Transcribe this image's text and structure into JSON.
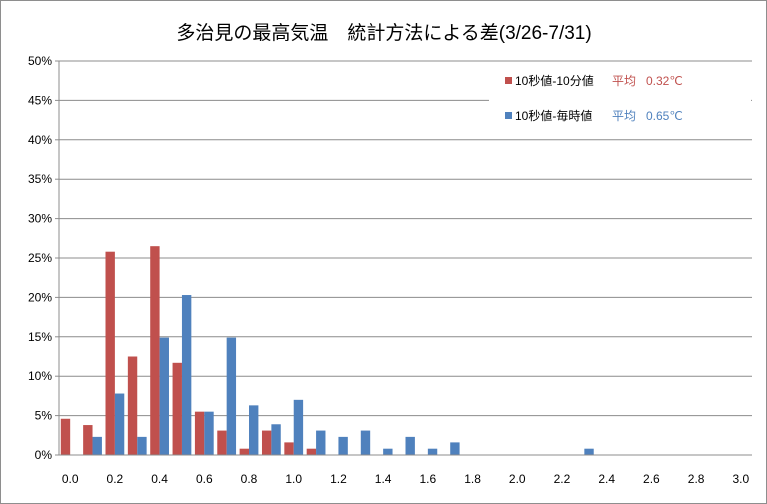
{
  "chart_data": {
    "type": "bar",
    "title": "多治見の最高気温　統計方法による差(3/26-7/31)",
    "xlabel": "",
    "ylabel": "",
    "ylim": [
      0,
      0.5
    ],
    "y_ticks": [
      "0%",
      "5%",
      "10%",
      "15%",
      "20%",
      "25%",
      "30%",
      "35%",
      "40%",
      "45%",
      "50%"
    ],
    "xlim": [
      -0.05,
      3.05
    ],
    "x_ticks": [
      "0.0",
      "0.2",
      "0.4",
      "0.6",
      "0.8",
      "1.0",
      "1.2",
      "1.4",
      "1.6",
      "1.8",
      "2.0",
      "2.2",
      "2.4",
      "2.6",
      "2.8",
      "3.0"
    ],
    "bin_width": 0.1,
    "grid": true,
    "legend_position": "top-right",
    "series": [
      {
        "name": "10秒値-10分値",
        "average_label": "平均",
        "average_value": "0.32℃",
        "color": "#c0504d",
        "x": [
          0.0,
          0.1,
          0.2,
          0.3,
          0.4,
          0.5,
          0.6,
          0.7,
          0.8,
          0.9,
          1.0,
          1.1
        ],
        "values": [
          0.046,
          0.038,
          0.258,
          0.125,
          0.265,
          0.117,
          0.055,
          0.031,
          0.008,
          0.031,
          0.016,
          0.008
        ]
      },
      {
        "name": "10秒値-毎時値",
        "average_label": "平均",
        "average_value": "0.65℃",
        "color": "#4f81bd",
        "x": [
          0.0,
          0.1,
          0.2,
          0.3,
          0.4,
          0.5,
          0.6,
          0.7,
          0.8,
          0.9,
          1.0,
          1.1,
          1.2,
          1.3,
          1.4,
          1.5,
          1.6,
          1.7,
          2.3
        ],
        "values": [
          0,
          0.023,
          0.078,
          0.023,
          0.149,
          0.203,
          0.055,
          0.149,
          0.063,
          0.039,
          0.07,
          0.031,
          0.023,
          0.031,
          0.008,
          0.023,
          0.008,
          0.016,
          0.008
        ]
      }
    ]
  }
}
